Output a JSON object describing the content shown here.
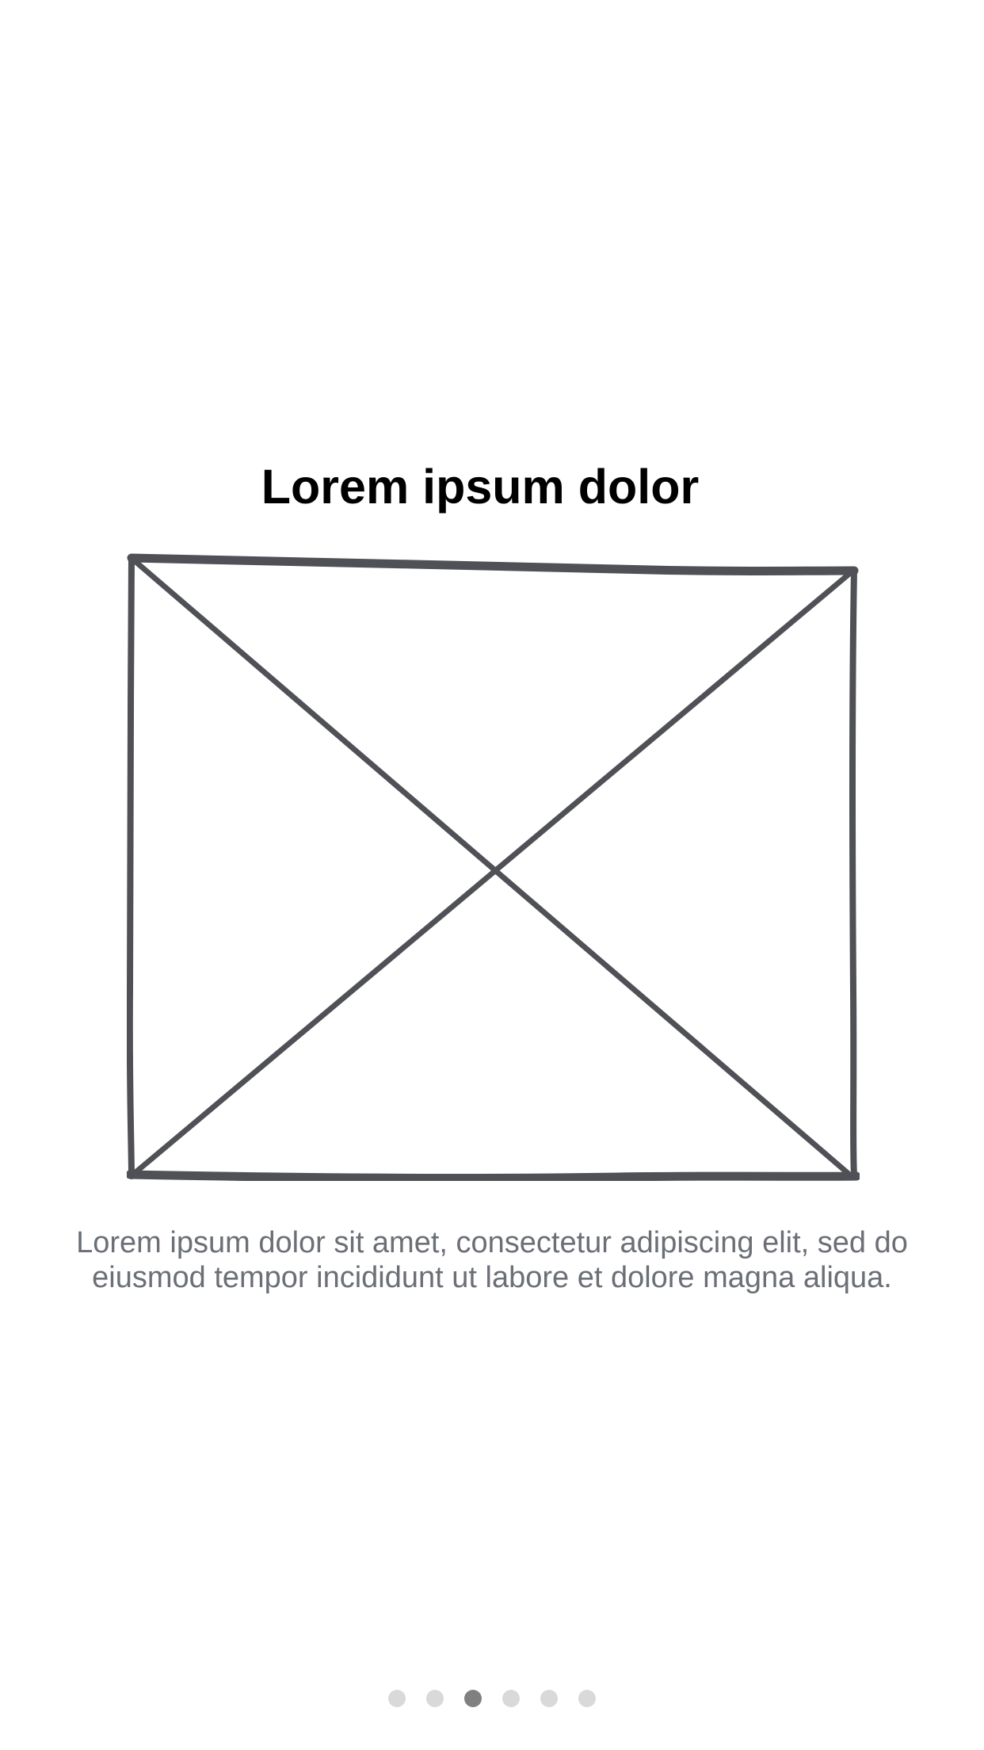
{
  "onboarding": {
    "title": "Lorem ipsum dolor",
    "description": "Lorem ipsum dolor sit amet, consectetur adipiscing elit, sed do eiusmod tempor incididunt ut labore et dolore magna aliqua.",
    "image": {
      "icon": "image-placeholder-icon",
      "stroke_color": "#4f5156"
    }
  },
  "pager": {
    "page_count": 6,
    "active_index": 2,
    "dot_color": "#d9d9d9",
    "active_dot_color": "#808080"
  }
}
